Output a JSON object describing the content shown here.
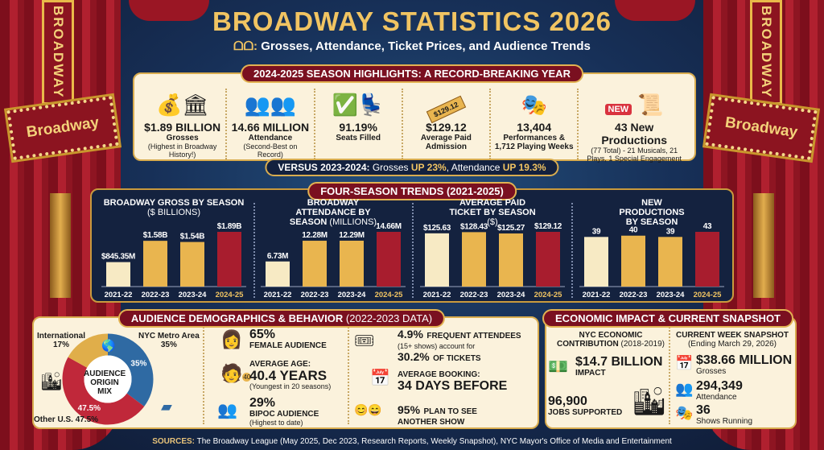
{
  "header": {
    "title": "BROADWAY STATISTICS 2026",
    "subtitle_prefix": "ᗝᗝ:",
    "subtitle": "Grosses, Attendance, Ticket Prices, and Audience Trends",
    "sign_vertical": "BROADWAY",
    "sign_horizontal": "Broadway"
  },
  "highlights": {
    "title": "2024-2025 SEASON HIGHLIGHTS: A RECORD-BREAKING YEAR",
    "items": [
      {
        "icon": "money-bag-icon",
        "value": "$1.89 BILLION",
        "label": "Grosses",
        "note": "(Highest in Broadway History!)"
      },
      {
        "icon": "audience-icon",
        "value": "14.66 MILLION",
        "label": "Attendance",
        "note": "(Second-Best on Record)"
      },
      {
        "icon": "seats-check-icon",
        "value": "91.19%",
        "label": "Seats Filled",
        "note": ""
      },
      {
        "icon": "ticket-icon",
        "ticket_text": "$129.12",
        "value": "$129.12",
        "label": "Average Paid Admission",
        "note": ""
      },
      {
        "icon": "stage-icon",
        "value": "13,404",
        "label": "Performances & 1,712 Playing Weeks",
        "note": ""
      },
      {
        "icon": "new-sign-icon",
        "sign_text": "NEW",
        "value": "43 New Productions",
        "label": "",
        "note": "(77 Total) - 21 Musicals, 21 Plays, 1 Special Engagement"
      }
    ],
    "versus": {
      "prefix": "VERSUS 2023-2024:",
      "g_label": "Grosses",
      "g_val": "UP 23%",
      "a_label": ", Attendance",
      "a_val": "UP 19.3%"
    }
  },
  "trends": {
    "title": "FOUR-SEASON TRENDS (2021-2025)"
  },
  "chart_data": [
    {
      "type": "bar",
      "title": "BROADWAY GROSS BY SEASON",
      "unit": "($ BILLIONS)",
      "categories": [
        "2021-22",
        "2022-23",
        "2023-24",
        "2024-25"
      ],
      "values": [
        0.8453,
        1.58,
        1.54,
        1.89
      ],
      "labels": [
        "$845.35M",
        "$1.58B",
        "$1.54B",
        "$1.89B"
      ]
    },
    {
      "type": "bar",
      "title": "BROADWAY ATTENDANCE BY SEASON",
      "unit": "(MILLIONS)",
      "categories": [
        "2021-22",
        "2022-23",
        "2023-24",
        "2024-25"
      ],
      "values": [
        6.73,
        12.28,
        12.29,
        14.66
      ],
      "labels": [
        "6.73M",
        "12.28M",
        "12.29M",
        "14.66M"
      ]
    },
    {
      "type": "bar",
      "title": "AVERAGE PAID TICKET BY SEASON",
      "unit": "($)",
      "categories": [
        "2021-22",
        "2022-23",
        "2023-24",
        "2024-25"
      ],
      "values": [
        125.63,
        128.43,
        125.27,
        129.12
      ],
      "labels": [
        "$125.63",
        "$128.43",
        "$125.27",
        "$129.12"
      ]
    },
    {
      "type": "bar",
      "title": "NEW PRODUCTIONS BY SEASON",
      "unit": "",
      "categories": [
        "2021-22",
        "2022-23",
        "2023-24",
        "2024-25"
      ],
      "values": [
        39,
        40,
        39,
        43
      ],
      "labels": [
        "39",
        "40",
        "39",
        "43"
      ]
    },
    {
      "type": "pie",
      "title": "AUDIENCE ORIGIN MIX",
      "categories": [
        "NYC Metro Area",
        "Other U.S.",
        "International"
      ],
      "values": [
        35,
        47.5,
        17
      ],
      "labels": [
        "35%",
        "47.5%",
        "17%"
      ],
      "colors": [
        "#2f6aa3",
        "#c0283a",
        "#e0ae4a"
      ]
    }
  ],
  "colors": {
    "bar_light": "#f7eac4",
    "bar_gold": "#e9b54f",
    "bar_highlight": "#a81d2e",
    "navy": "#14223f",
    "gold": "#f1c462"
  },
  "demographics": {
    "title": "AUDIENCE DEMOGRAPHICS & BEHAVIOR",
    "title_suffix": "(2022-2023 DATA)",
    "donut_labels": {
      "intl": "International",
      "intl_pct": "17%",
      "nyc": "NYC Metro Area",
      "nyc_pct": "35%",
      "us": "Other U.S.",
      "us_pct": "47.5%",
      "center": "AUDIENCE ORIGIN MIX",
      "age_badge": "40"
    },
    "female": {
      "value": "65%",
      "label": "FEMALE AUDIENCE"
    },
    "age": {
      "label": "AVERAGE AGE:",
      "value": "40.4 YEARS",
      "note": "(Youngest in 20 seasons)"
    },
    "bipoc": {
      "value": "29%",
      "label": "BIPOC AUDIENCE",
      "note": "(Highest to date)"
    },
    "frequent": {
      "pct": "4.9%",
      "label": "FREQUENT ATTENDEES",
      "note": "(15+ shows) account for",
      "tickets": "30.2%",
      "tickets_label": "OF TICKETS"
    },
    "booking": {
      "label": "AVERAGE BOOKING:",
      "value": "34 DAYS BEFORE"
    },
    "plan": {
      "pct": "95%",
      "label": "PLAN TO SEE",
      "label2": "ANOTHER SHOW"
    }
  },
  "economic": {
    "title": "ECONOMIC IMPACT & CURRENT SNAPSHOT",
    "contrib_title": "NYC ECONOMIC CONTRIBUTION",
    "contrib_years": "(2018-2019)",
    "impact_value": "$14.7 BILLION",
    "impact_label": "IMPACT",
    "jobs_value": "96,900",
    "jobs_label": "JOBS SUPPORTED",
    "snapshot_title": "CURRENT WEEK SNAPSHOT",
    "snapshot_date": "(Ending March 29, 2026)",
    "snapshot": [
      {
        "icon": "calendar-icon",
        "value": "$38.66 MILLION",
        "label": "Grosses"
      },
      {
        "icon": "audience-icon",
        "value": "294,349",
        "label": "Attendance"
      },
      {
        "icon": "stage-icon",
        "value": "36",
        "label": "Shows Running"
      }
    ]
  },
  "sources": {
    "label": "SOURCES:",
    "text": "The Broadway League (May 2025, Dec 2023, Research Reports, Weekly Snapshot), NYC Mayor's Office of Media and Entertainment"
  }
}
